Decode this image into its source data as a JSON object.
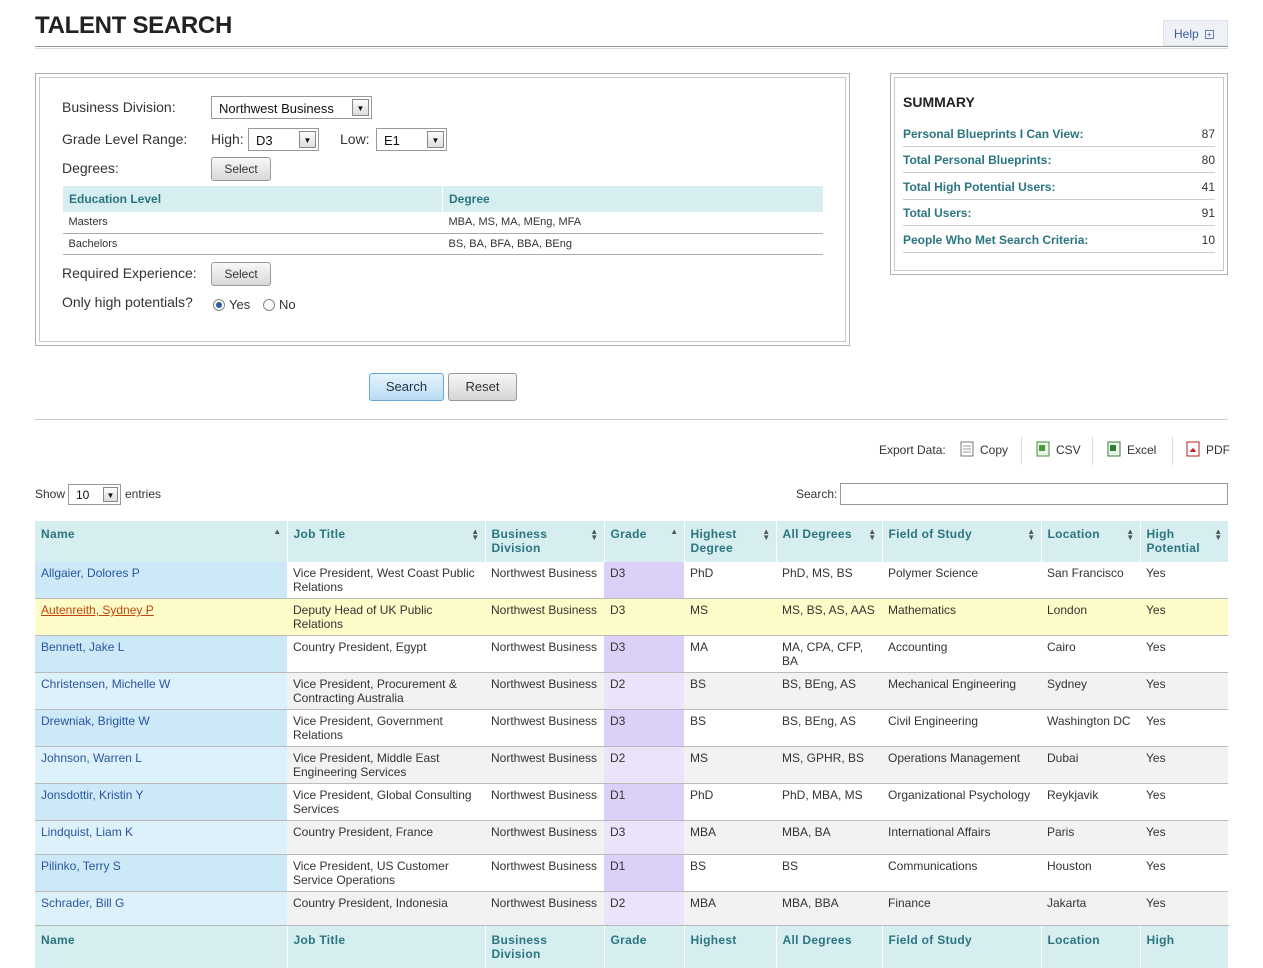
{
  "page": {
    "title": "TALENT SEARCH",
    "help_label": "Help"
  },
  "form": {
    "business_division_label": "Business Division:",
    "business_division_value": "Northwest Business",
    "grade_range_label": "Grade Level Range:",
    "high_label": "High:",
    "high_value": "D3",
    "low_label": "Low:",
    "low_value": "E1",
    "degrees_label": "Degrees:",
    "select_label": "Select",
    "degrees_table": {
      "headers": [
        "Education Level",
        "Degree"
      ],
      "rows": [
        [
          "Masters",
          "MBA, MS, MA, MEng, MFA"
        ],
        [
          "Bachelors",
          "BS, BA, BFA, BBA, BEng"
        ]
      ]
    },
    "required_experience_label": "Required Experience:",
    "only_high_label": "Only high potentials?",
    "yes_label": "Yes",
    "no_label": "No",
    "selected": "Yes",
    "search_label": "Search",
    "reset_label": "Reset"
  },
  "summary": {
    "title": "SUMMARY",
    "rows": [
      {
        "label": "Personal Blueprints I Can View:",
        "value": "87"
      },
      {
        "label": "Total Personal Blueprints:",
        "value": "80"
      },
      {
        "label": "Total High Potential Users:",
        "value": "41"
      },
      {
        "label": "Total Users:",
        "value": "91"
      },
      {
        "label": "People Who Met Search Criteria:",
        "value": "10"
      }
    ]
  },
  "export": {
    "label": "Export Data:",
    "copy": "Copy",
    "csv": "CSV",
    "excel": "Excel",
    "pdf": "PDF"
  },
  "table_controls": {
    "show_label": "Show",
    "entries_value": "10",
    "entries_label": "entries",
    "search_label": "Search:"
  },
  "table": {
    "headers": [
      "Name",
      "Job Title",
      "Business Division",
      "Grade",
      "Highest Degree",
      "All Degrees",
      "Field of Study",
      "Location",
      "High Potential"
    ],
    "footer_headers": [
      "Name",
      "Job Title",
      "Business Division",
      "Grade",
      "Highest",
      "All Degrees",
      "Field of Study",
      "Location",
      "High"
    ],
    "rows": [
      [
        "Allgaier, Dolores P",
        "Vice President, West Coast Public Relations",
        "Northwest Business",
        "D3",
        "PhD",
        "PhD, MS, BS",
        "Polymer Science",
        "San Francisco",
        "Yes"
      ],
      [
        "Autenreith, Sydney P",
        "Deputy Head of UK Public Relations",
        "Northwest Business",
        "D3",
        "MS",
        "MS, BS, AS, AAS",
        "Mathematics",
        "London",
        "Yes"
      ],
      [
        "Bennett, Jake L",
        "Country President, Egypt",
        "Northwest Business",
        "D3",
        "MA",
        "MA, CPA, CFP, BA",
        "Accounting",
        "Cairo",
        "Yes"
      ],
      [
        "Christensen, Michelle W",
        "Vice President, Procurement & Contracting Australia",
        "Northwest Business",
        "D2",
        "BS",
        "BS, BEng, AS",
        "Mechanical Engineering",
        "Sydney",
        "Yes"
      ],
      [
        "Drewniak, Brigitte W",
        "Vice President, Government Relations",
        "Northwest Business",
        "D3",
        "BS",
        "BS, BEng, AS",
        "Civil Engineering",
        "Washington DC",
        "Yes"
      ],
      [
        "Johnson, Warren L",
        "Vice President, Middle East Engineering Services",
        "Northwest Business",
        "D2",
        "MS",
        "MS, GPHR, BS",
        "Operations Management",
        "Dubai",
        "Yes"
      ],
      [
        "Jonsdottir, Kristin Y",
        "Vice President, Global Consulting Services",
        "Northwest Business",
        "D1",
        "PhD",
        "PhD, MBA, MS",
        "Organizational Psychology",
        "Reykjavik",
        "Yes"
      ],
      [
        "Lindquist, Liam K",
        "Country President, France",
        "Northwest Business",
        "D3",
        "MBA",
        "MBA, BA",
        "International Affairs",
        "Paris",
        "Yes"
      ],
      [
        "Pilinko, Terry S",
        "Vice President, US Customer Service Operations",
        "Northwest Business",
        "D1",
        "BS",
        "BS",
        "Communications",
        "Houston",
        "Yes"
      ],
      [
        "Schrader, Bill G",
        "Country President, Indonesia",
        "Northwest Business",
        "D2",
        "MBA",
        "MBA, BBA",
        "Finance",
        "Jakarta",
        "Yes"
      ]
    ]
  }
}
